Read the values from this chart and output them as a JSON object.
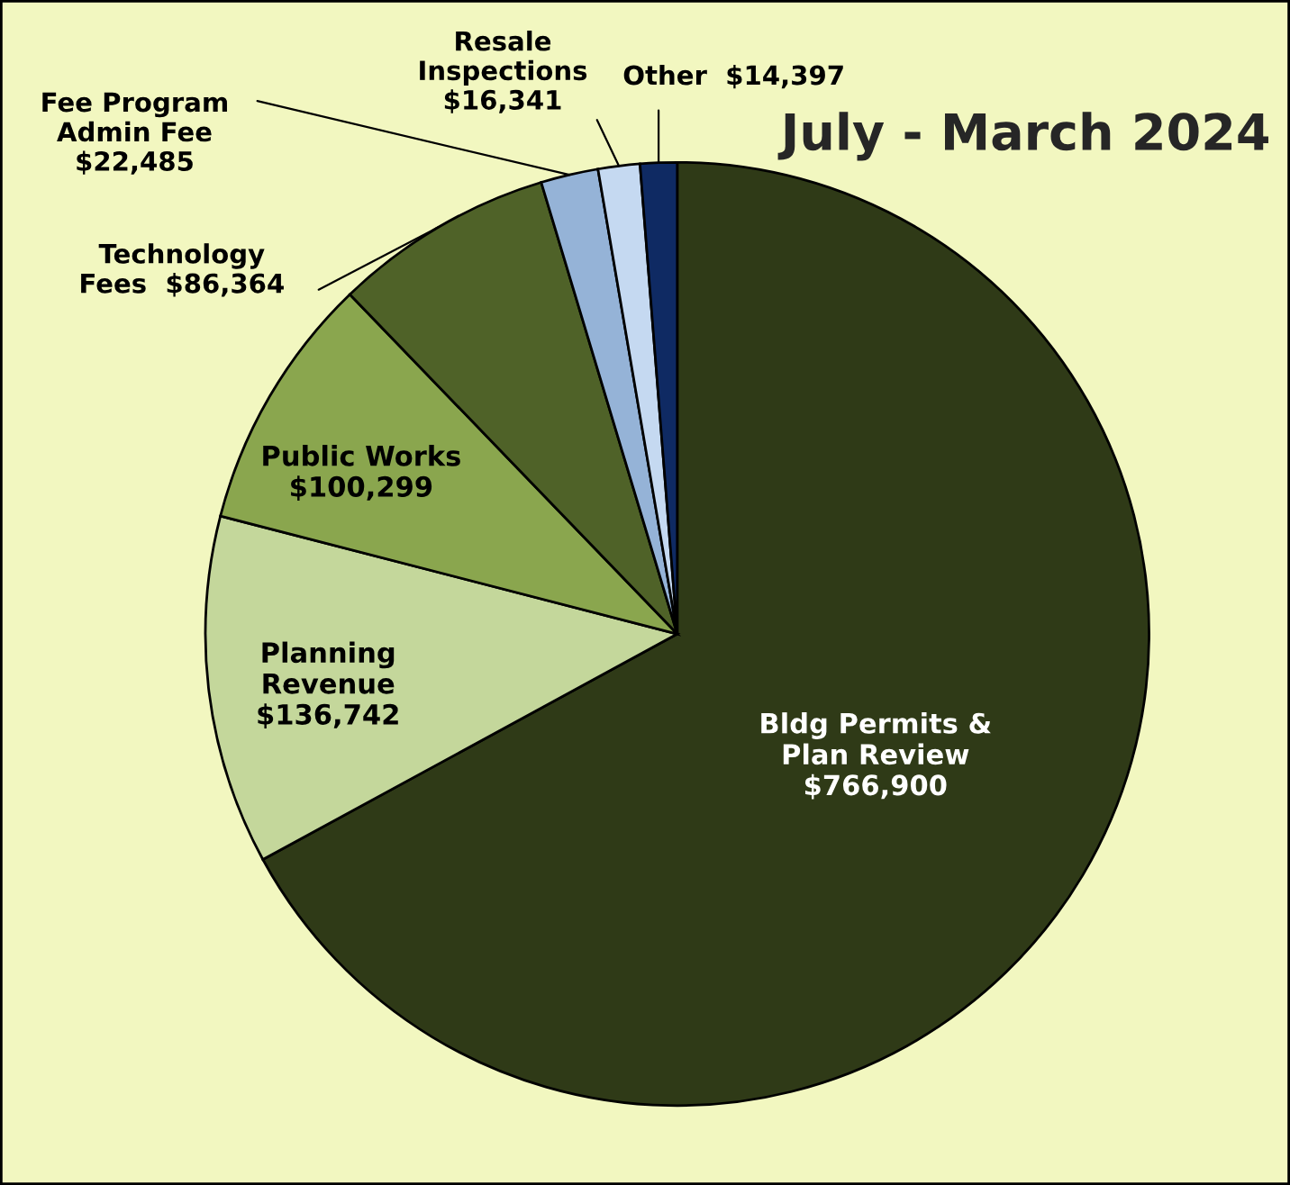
{
  "chart_data": {
    "type": "pie",
    "title": "July - March 2024",
    "categories": [
      "Bldg Permits &\nPlan Review",
      "Planning\nRevenue",
      "Public Works",
      "Technology\nFees",
      "Fee Program\nAdmin Fee",
      "Resale\nInspections",
      "Other"
    ],
    "values": [
      766900,
      136742,
      100299,
      86364,
      22485,
      16341,
      14397
    ],
    "value_labels": [
      "$766,900",
      "$136,742",
      "$100,299",
      "$86,364",
      "$22,485",
      "$16,341",
      "$14,397"
    ],
    "colors": [
      "#2f3a17",
      "#c4d79b",
      "#8aa64e",
      "#4f6228",
      "#95b3d7",
      "#c5d9f1",
      "#0f2a63"
    ]
  }
}
